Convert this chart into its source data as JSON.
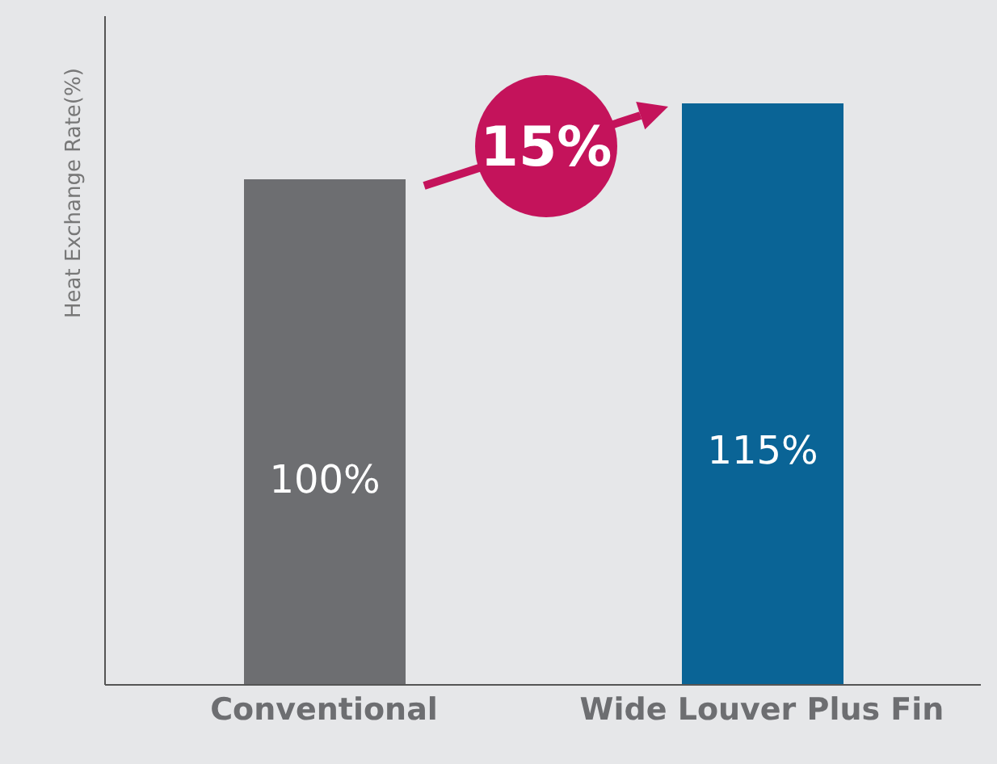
{
  "chart_data": {
    "type": "bar",
    "ylabel": "Heat Exchange Rate(%)",
    "categories": [
      "Conventional",
      "Wide Louver Plus Fin"
    ],
    "values": [
      100,
      115
    ],
    "colors": [
      "#6d6e71",
      "#0a6496"
    ],
    "value_labels": [
      "100%",
      "115%"
    ],
    "annotations": [
      "15%"
    ],
    "grid": false
  }
}
